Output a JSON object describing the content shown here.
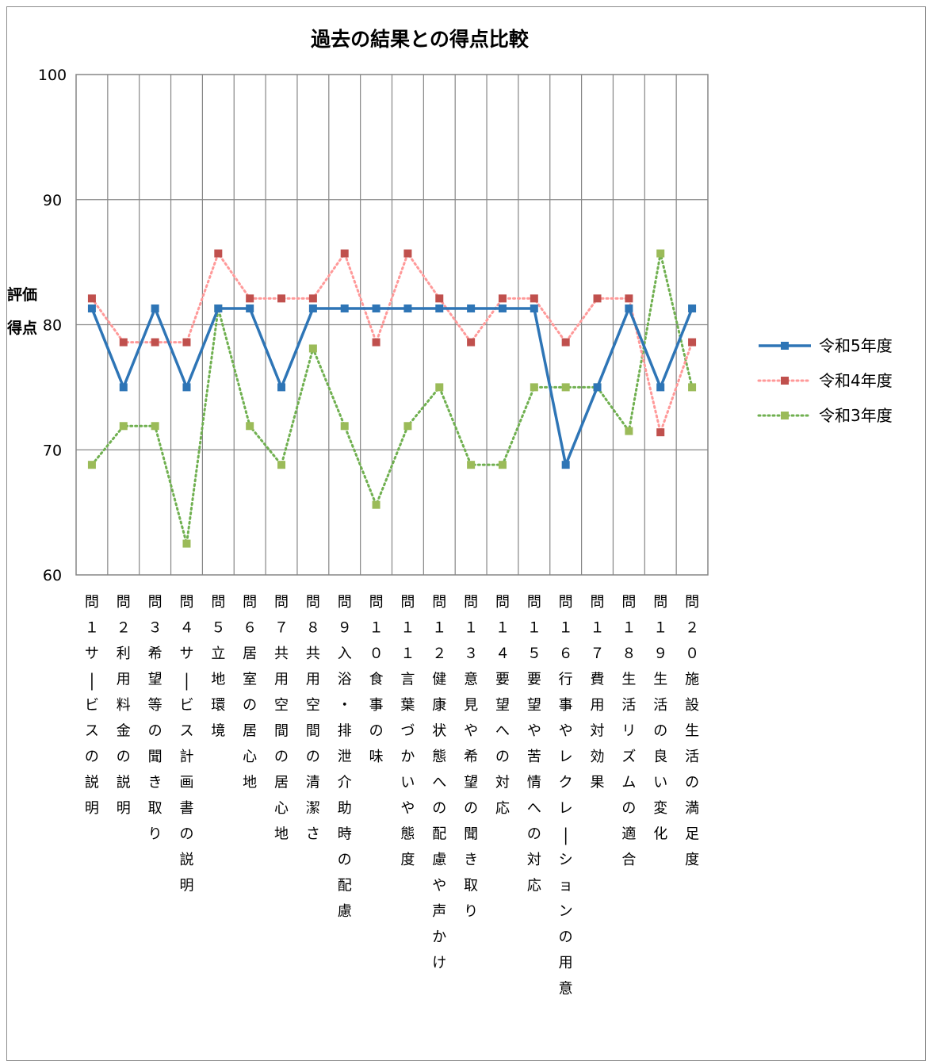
{
  "chart_data": {
    "type": "line",
    "title": "過去の結果との得点比較",
    "ylabel": "評価得点",
    "xlabel": "",
    "ylim": [
      60,
      100
    ],
    "yticks": [
      60,
      70,
      80,
      90,
      100
    ],
    "grid": true,
    "legend_position": "right",
    "categories": [
      "問１サービスの説明",
      "問２利用料金の説明",
      "問３希望等の聞き取り",
      "問４サービス計画書の説明",
      "問５立地環境",
      "問６居室の居心地",
      "問７共用空間の居心地",
      "問８共用空間の清潔さ",
      "問９入浴・排泄介助時の配慮",
      "問１０食事の味",
      "問１１言葉づかいや態度",
      "問１２健康状態への配慮や声かけ",
      "問１３意見や希望の聞き取り",
      "問１４要望への対応",
      "問１５要望や苦情への対応",
      "問１６行事やレクレーションの用意",
      "問１７費用対効果",
      "問１８生活リズムの適合",
      "問１９生活の良い変化",
      "問２０施設生活の満足度"
    ],
    "series": [
      {
        "name": "令和5年度",
        "color": "#2E75B6",
        "style": "solid",
        "values": [
          81.3,
          75.0,
          81.3,
          75.0,
          81.3,
          81.3,
          75.0,
          81.3,
          81.3,
          81.3,
          81.3,
          81.3,
          81.3,
          81.3,
          81.3,
          68.8,
          75.0,
          81.3,
          75.0,
          81.3
        ]
      },
      {
        "name": "令和4年度",
        "color": "#C0504D",
        "line_color": "#FF9999",
        "style": "dotted",
        "values": [
          82.1,
          78.6,
          78.6,
          78.6,
          85.7,
          82.1,
          82.1,
          82.1,
          85.7,
          78.6,
          85.7,
          82.1,
          78.6,
          82.1,
          82.1,
          78.6,
          82.1,
          82.1,
          71.4,
          78.6
        ]
      },
      {
        "name": "令和3年度",
        "color": "#9BBB59",
        "line_color": "#70B050",
        "style": "dotted",
        "values": [
          68.8,
          71.9,
          71.9,
          62.5,
          81.3,
          71.9,
          68.8,
          78.1,
          71.9,
          65.6,
          71.9,
          75.0,
          68.8,
          68.8,
          75.0,
          75.0,
          75.0,
          71.5,
          85.7,
          75.0
        ]
      }
    ]
  }
}
